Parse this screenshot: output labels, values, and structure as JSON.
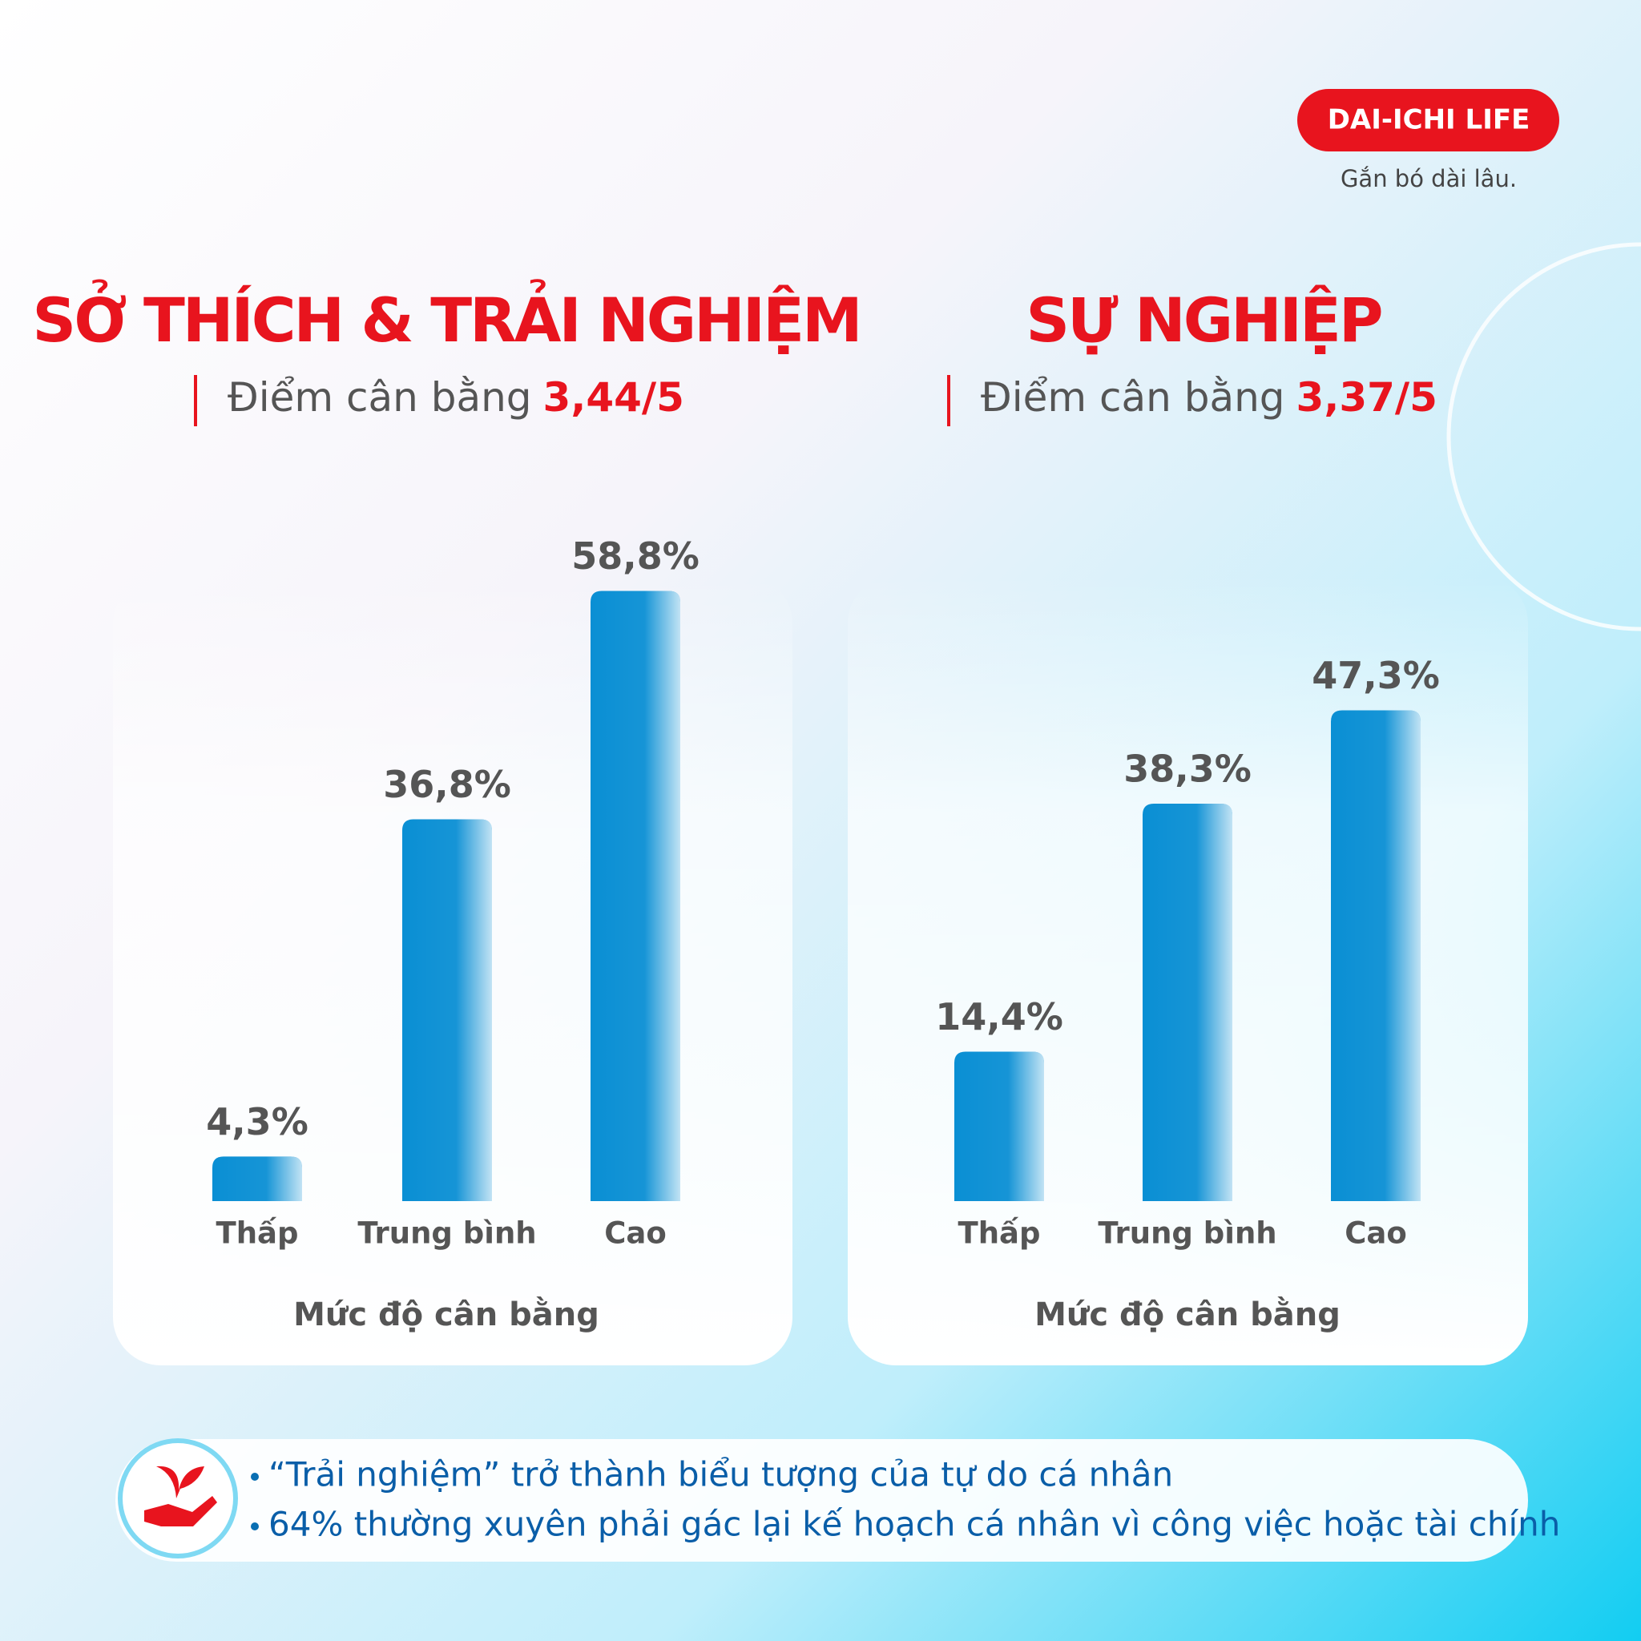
{
  "brand": {
    "name": "DAI-ICHI LIFE",
    "tagline": "Gắn bó dài lâu."
  },
  "chart_data": [
    {
      "type": "bar",
      "title": "SỞ THÍCH & TRẢI NGHIỆM",
      "subtitle": "Điểm cân bằng",
      "score": "3,44/5",
      "x_label": "Mức độ cân bằng",
      "categories": [
        "Thấp",
        "Trung bình",
        "Cao"
      ],
      "values": [
        4.3,
        36.8,
        58.8
      ],
      "value_labels": [
        "4,3%",
        "36,8%",
        "58,8%"
      ],
      "color": "#0a8fd4"
    },
    {
      "type": "bar",
      "title": "SỰ NGHIỆP",
      "subtitle": "Điểm cân bằng",
      "score": "3,37/5",
      "x_label": "Mức độ cân bằng",
      "categories": [
        "Thấp",
        "Trung bình",
        "Cao"
      ],
      "values": [
        14.4,
        38.3,
        47.3
      ],
      "value_labels": [
        "14,4%",
        "38,3%",
        "47,3%"
      ],
      "color": "#0a8fd4"
    }
  ],
  "notes": [
    "“Trải nghiệm” trở thành biểu tượng của tự do cá nhân",
    "64% thường xuyên phải gác lại kế hoạch cá nhân vì công việc hoặc tài chính"
  ]
}
